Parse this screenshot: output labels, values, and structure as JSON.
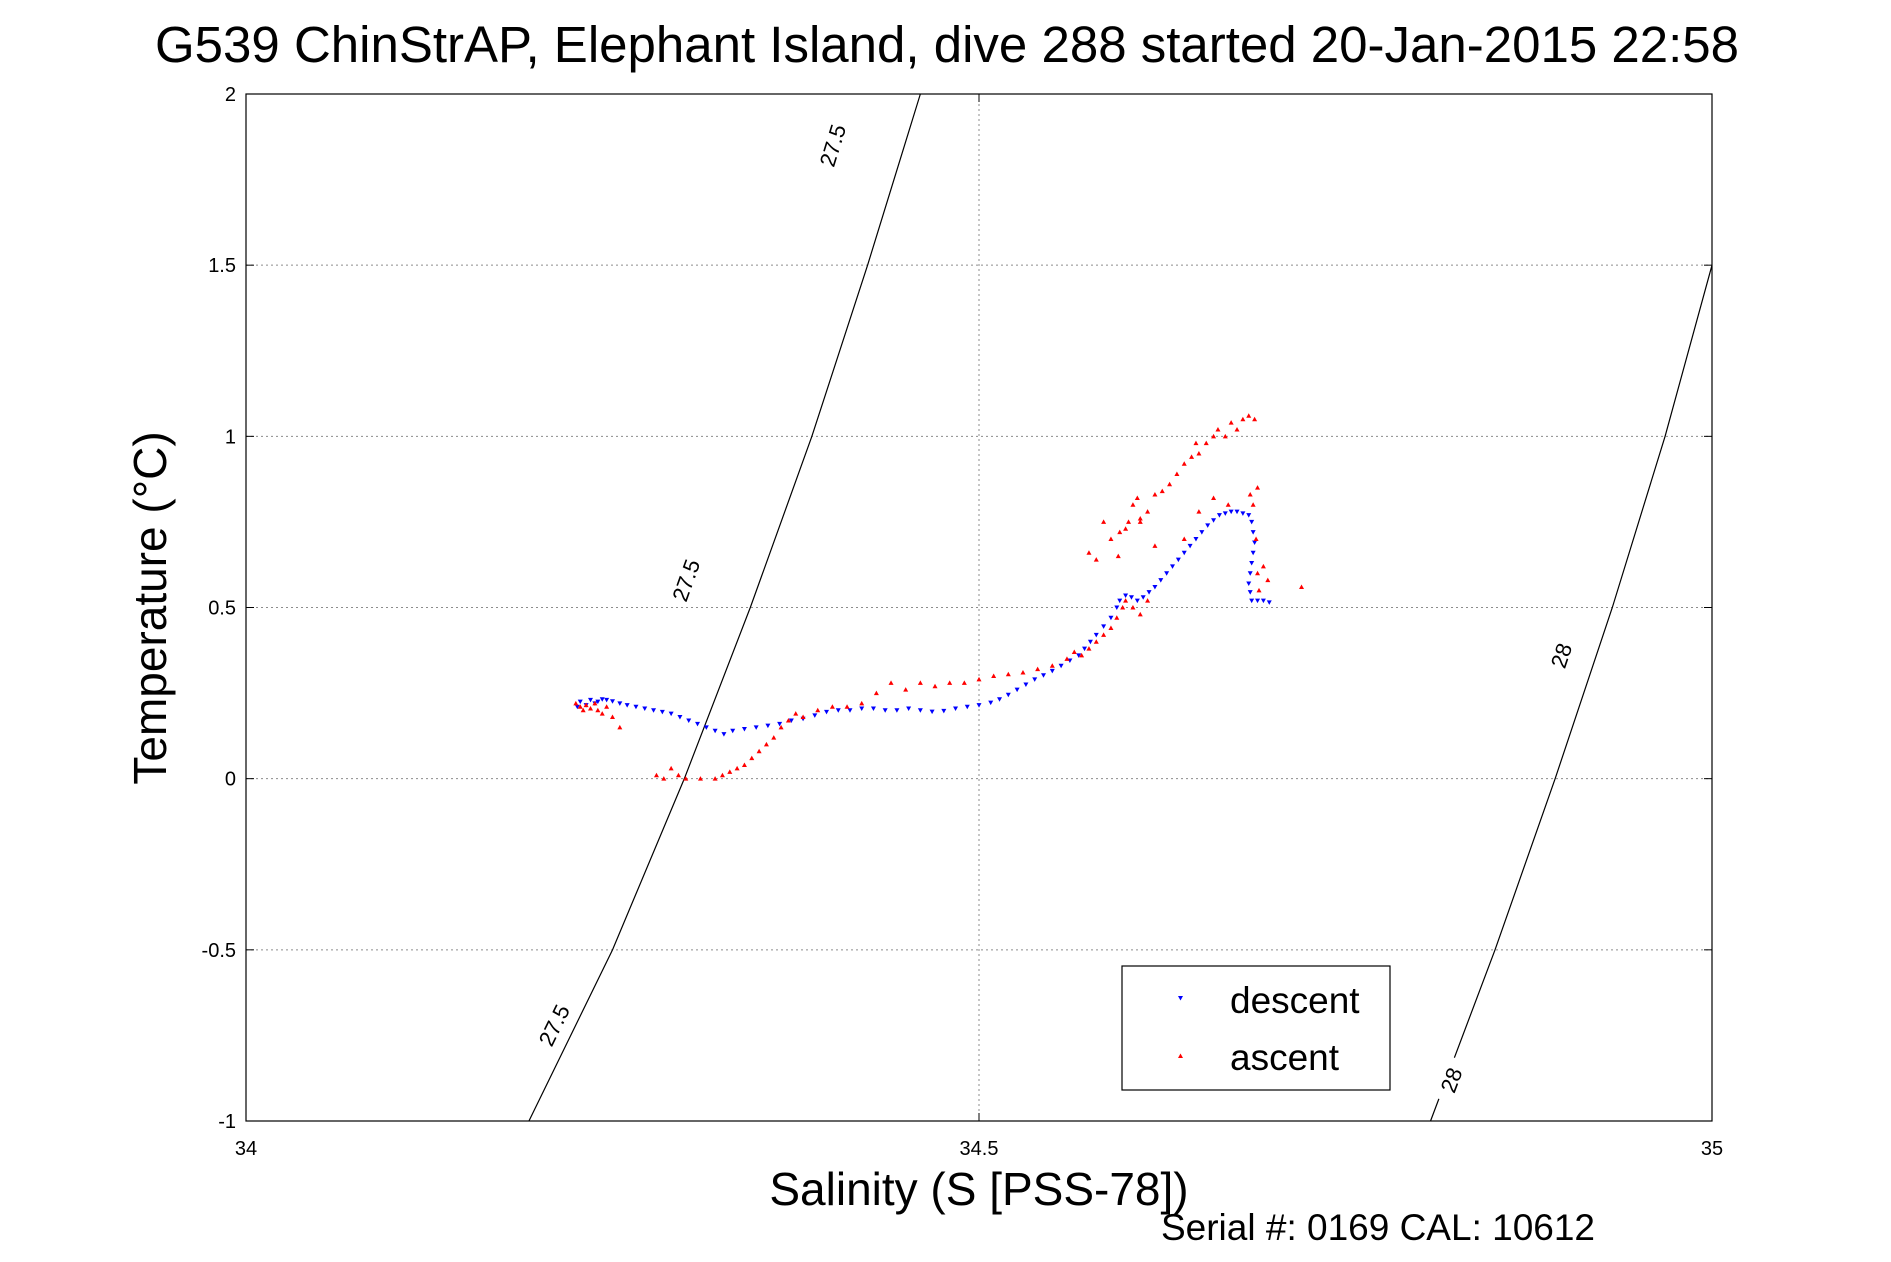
{
  "chart_data": {
    "type": "scatter",
    "title": "G539 ChinStrAP, Elephant Island, dive 288 started 20-Jan-2015 22:58",
    "xlabel": "Salinity (S [PSS-78])",
    "ylabel": "Temperature (°C)",
    "xlim": [
      34,
      35
    ],
    "ylim": [
      -1,
      2
    ],
    "x_ticks": [
      "34",
      "34.5",
      "35"
    ],
    "y_ticks": [
      "-1",
      "-0.5",
      "0",
      "0.5",
      "1",
      "1.5",
      "2"
    ],
    "grid": true,
    "legend_position": "bottom-right",
    "footer": "Serial #: 0169 CAL: 10612",
    "contours": [
      {
        "label": "27.5",
        "points": [
          [
            34.193,
            -1.0
          ],
          [
            34.25,
            -0.5
          ],
          [
            34.299,
            0.0
          ],
          [
            34.344,
            0.5
          ],
          [
            34.386,
            1.0
          ],
          [
            34.424,
            1.5
          ],
          [
            34.46,
            2.0
          ]
        ],
        "label_positions": [
          [
            34.21,
            -0.72
          ],
          [
            34.3,
            0.58
          ],
          [
            34.4,
            1.85
          ]
        ]
      },
      {
        "label": "28",
        "points": [
          [
            34.808,
            -1.0
          ],
          [
            34.852,
            -0.5
          ],
          [
            34.893,
            0.0
          ],
          [
            34.932,
            0.5
          ],
          [
            34.968,
            1.0
          ],
          [
            35.0,
            1.5
          ]
        ],
        "label_positions": [
          [
            34.822,
            -0.88
          ],
          [
            34.897,
            0.36
          ]
        ]
      }
    ],
    "series": [
      {
        "name": "descent",
        "color": "#0000ff",
        "marker": "triangle-down",
        "points": [
          [
            34.226,
            0.21
          ],
          [
            34.228,
            0.225
          ],
          [
            34.232,
            0.215
          ],
          [
            34.235,
            0.23
          ],
          [
            34.238,
            0.22
          ],
          [
            34.24,
            0.225
          ],
          [
            34.243,
            0.232
          ],
          [
            34.246,
            0.23
          ],
          [
            34.25,
            0.226
          ],
          [
            34.255,
            0.22
          ],
          [
            34.26,
            0.215
          ],
          [
            34.266,
            0.21
          ],
          [
            34.272,
            0.205
          ],
          [
            34.278,
            0.2
          ],
          [
            34.284,
            0.195
          ],
          [
            34.29,
            0.19
          ],
          [
            34.296,
            0.18
          ],
          [
            34.302,
            0.17
          ],
          [
            34.308,
            0.16
          ],
          [
            34.314,
            0.15
          ],
          [
            34.32,
            0.14
          ],
          [
            34.326,
            0.13
          ],
          [
            34.332,
            0.14
          ],
          [
            34.34,
            0.145
          ],
          [
            34.348,
            0.15
          ],
          [
            34.356,
            0.155
          ],
          [
            34.364,
            0.16
          ],
          [
            34.372,
            0.17
          ],
          [
            34.38,
            0.175
          ],
          [
            34.388,
            0.185
          ],
          [
            34.396,
            0.195
          ],
          [
            34.404,
            0.2
          ],
          [
            34.412,
            0.2
          ],
          [
            34.42,
            0.205
          ],
          [
            34.428,
            0.205
          ],
          [
            34.436,
            0.2
          ],
          [
            34.444,
            0.2
          ],
          [
            34.452,
            0.205
          ],
          [
            34.46,
            0.2
          ],
          [
            34.468,
            0.196
          ],
          [
            34.476,
            0.198
          ],
          [
            34.484,
            0.205
          ],
          [
            34.492,
            0.21
          ],
          [
            34.5,
            0.215
          ],
          [
            34.508,
            0.222
          ],
          [
            34.514,
            0.232
          ],
          [
            34.52,
            0.245
          ],
          [
            34.526,
            0.26
          ],
          [
            34.532,
            0.275
          ],
          [
            34.538,
            0.29
          ],
          [
            34.544,
            0.302
          ],
          [
            34.55,
            0.315
          ],
          [
            34.556,
            0.33
          ],
          [
            34.562,
            0.345
          ],
          [
            34.568,
            0.36
          ],
          [
            34.572,
            0.38
          ],
          [
            34.576,
            0.4
          ],
          [
            34.58,
            0.42
          ],
          [
            34.585,
            0.445
          ],
          [
            34.59,
            0.47
          ],
          [
            34.594,
            0.5
          ],
          [
            34.596,
            0.52
          ],
          [
            34.6,
            0.535
          ],
          [
            34.604,
            0.53
          ],
          [
            34.608,
            0.52
          ],
          [
            34.612,
            0.53
          ],
          [
            34.616,
            0.545
          ],
          [
            34.62,
            0.56
          ],
          [
            34.624,
            0.58
          ],
          [
            34.628,
            0.6
          ],
          [
            34.632,
            0.62
          ],
          [
            34.636,
            0.64
          ],
          [
            34.64,
            0.66
          ],
          [
            34.644,
            0.68
          ],
          [
            34.648,
            0.7
          ],
          [
            34.652,
            0.72
          ],
          [
            34.656,
            0.74
          ],
          [
            34.66,
            0.755
          ],
          [
            34.664,
            0.77
          ],
          [
            34.668,
            0.775
          ],
          [
            34.672,
            0.78
          ],
          [
            34.676,
            0.78
          ],
          [
            34.68,
            0.775
          ],
          [
            34.684,
            0.77
          ],
          [
            34.686,
            0.75
          ],
          [
            34.687,
            0.72
          ],
          [
            34.688,
            0.69
          ],
          [
            34.687,
            0.66
          ],
          [
            34.686,
            0.63
          ],
          [
            34.685,
            0.6
          ],
          [
            34.684,
            0.57
          ],
          [
            34.685,
            0.545
          ],
          [
            34.686,
            0.52
          ],
          [
            34.69,
            0.52
          ],
          [
            34.694,
            0.52
          ],
          [
            34.698,
            0.515
          ]
        ]
      },
      {
        "name": "ascent",
        "color": "#ff0000",
        "marker": "triangle-up",
        "points": [
          [
            34.225,
            0.22
          ],
          [
            34.228,
            0.21
          ],
          [
            34.23,
            0.2
          ],
          [
            34.232,
            0.215
          ],
          [
            34.235,
            0.205
          ],
          [
            34.238,
            0.22
          ],
          [
            34.24,
            0.2
          ],
          [
            34.243,
            0.19
          ],
          [
            34.246,
            0.21
          ],
          [
            34.25,
            0.18
          ],
          [
            34.255,
            0.15
          ],
          [
            34.28,
            0.01
          ],
          [
            34.285,
            0.0
          ],
          [
            34.29,
            0.03
          ],
          [
            34.295,
            0.01
          ],
          [
            34.3,
            0.0
          ],
          [
            34.31,
            0.0
          ],
          [
            34.32,
            0.0
          ],
          [
            34.325,
            0.01
          ],
          [
            34.33,
            0.02
          ],
          [
            34.335,
            0.03
          ],
          [
            34.34,
            0.04
          ],
          [
            34.345,
            0.06
          ],
          [
            34.35,
            0.08
          ],
          [
            34.355,
            0.1
          ],
          [
            34.36,
            0.12
          ],
          [
            34.365,
            0.15
          ],
          [
            34.37,
            0.17
          ],
          [
            34.375,
            0.19
          ],
          [
            34.38,
            0.18
          ],
          [
            34.39,
            0.2
          ],
          [
            34.4,
            0.21
          ],
          [
            34.41,
            0.21
          ],
          [
            34.42,
            0.22
          ],
          [
            34.43,
            0.25
          ],
          [
            34.44,
            0.28
          ],
          [
            34.45,
            0.26
          ],
          [
            34.46,
            0.28
          ],
          [
            34.47,
            0.27
          ],
          [
            34.48,
            0.28
          ],
          [
            34.49,
            0.28
          ],
          [
            34.5,
            0.29
          ],
          [
            34.51,
            0.3
          ],
          [
            34.52,
            0.305
          ],
          [
            34.53,
            0.31
          ],
          [
            34.54,
            0.32
          ],
          [
            34.55,
            0.33
          ],
          [
            34.56,
            0.35
          ],
          [
            34.565,
            0.37
          ],
          [
            34.57,
            0.36
          ],
          [
            34.575,
            0.38
          ],
          [
            34.58,
            0.4
          ],
          [
            34.585,
            0.42
          ],
          [
            34.59,
            0.44
          ],
          [
            34.594,
            0.47
          ],
          [
            34.598,
            0.5
          ],
          [
            34.6,
            0.52
          ],
          [
            34.605,
            0.5
          ],
          [
            34.61,
            0.48
          ],
          [
            34.615,
            0.52
          ],
          [
            34.575,
            0.66
          ],
          [
            34.58,
            0.64
          ],
          [
            34.585,
            0.75
          ],
          [
            34.59,
            0.7
          ],
          [
            34.596,
            0.72
          ],
          [
            34.6,
            0.73
          ],
          [
            34.602,
            0.75
          ],
          [
            34.605,
            0.8
          ],
          [
            34.608,
            0.82
          ],
          [
            34.61,
            0.76
          ],
          [
            34.615,
            0.78
          ],
          [
            34.62,
            0.83
          ],
          [
            34.625,
            0.84
          ],
          [
            34.63,
            0.86
          ],
          [
            34.635,
            0.89
          ],
          [
            34.64,
            0.92
          ],
          [
            34.645,
            0.94
          ],
          [
            34.648,
            0.98
          ],
          [
            34.65,
            0.95
          ],
          [
            34.655,
            0.98
          ],
          [
            34.66,
            1.0
          ],
          [
            34.663,
            1.02
          ],
          [
            34.668,
            1.0
          ],
          [
            34.672,
            1.04
          ],
          [
            34.676,
            1.02
          ],
          [
            34.68,
            1.05
          ],
          [
            34.684,
            1.06
          ],
          [
            34.688,
            1.05
          ],
          [
            34.69,
            0.85
          ],
          [
            34.685,
            0.83
          ],
          [
            34.687,
            0.8
          ],
          [
            34.689,
            0.7
          ],
          [
            34.69,
            0.6
          ],
          [
            34.691,
            0.55
          ],
          [
            34.694,
            0.62
          ],
          [
            34.697,
            0.58
          ],
          [
            34.72,
            0.56
          ],
          [
            34.66,
            0.82
          ],
          [
            34.65,
            0.78
          ],
          [
            34.64,
            0.7
          ],
          [
            34.62,
            0.68
          ],
          [
            34.595,
            0.65
          ],
          [
            34.61,
            0.75
          ],
          [
            34.67,
            0.8
          ]
        ]
      }
    ]
  }
}
